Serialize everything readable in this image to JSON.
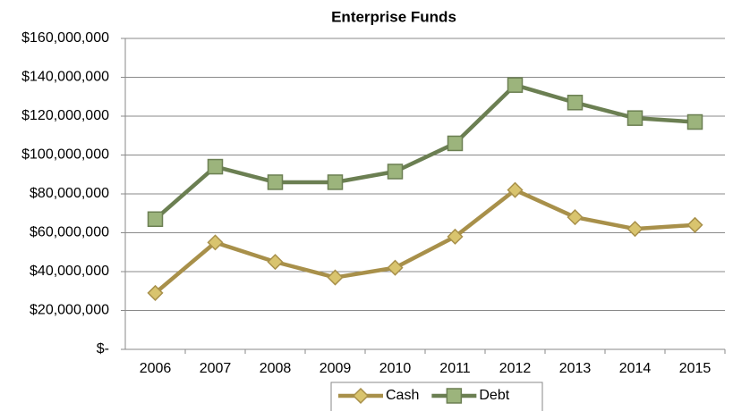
{
  "chart_data": {
    "type": "line",
    "title": "Enterprise Funds",
    "categories": [
      "2006",
      "2007",
      "2008",
      "2009",
      "2010",
      "2011",
      "2012",
      "2013",
      "2014",
      "2015"
    ],
    "series": [
      {
        "name": "Cash",
        "color": "#a8904a",
        "marker_color": "#d9c46e",
        "marker": "diamond",
        "values": [
          29000000,
          55000000,
          45000000,
          37000000,
          42000000,
          58000000,
          82000000,
          68000000,
          62000000,
          64000000
        ]
      },
      {
        "name": "Debt",
        "color": "#6b7f52",
        "marker_color": "#9cb47c",
        "marker": "square",
        "values": [
          67000000,
          94000000,
          86000000,
          86000000,
          91500000,
          106000000,
          136000000,
          127000000,
          119000000,
          117000000
        ]
      }
    ],
    "ylim": [
      0,
      160000000
    ],
    "yticks": [
      {
        "value": 0,
        "label": "$-"
      },
      {
        "value": 20000000,
        "label": "$20,000,000"
      },
      {
        "value": 40000000,
        "label": "$40,000,000"
      },
      {
        "value": 60000000,
        "label": "$60,000,000"
      },
      {
        "value": 80000000,
        "label": "$80,000,000"
      },
      {
        "value": 100000000,
        "label": "$100,000,000"
      },
      {
        "value": 120000000,
        "label": "$120,000,000"
      },
      {
        "value": 140000000,
        "label": "$140,000,000"
      },
      {
        "value": 160000000,
        "label": "$160,000,000"
      }
    ],
    "grid": true,
    "legend": "bottom"
  }
}
